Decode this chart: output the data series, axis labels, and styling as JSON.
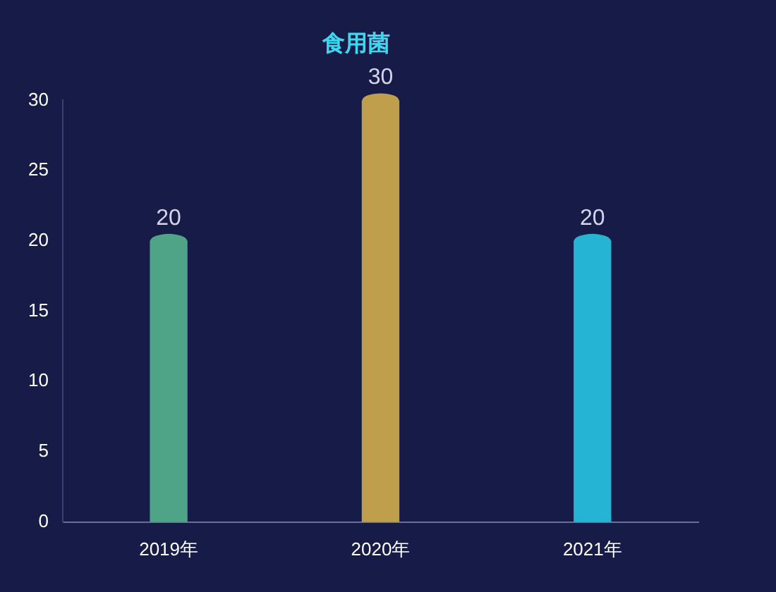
{
  "chart_data": {
    "type": "bar",
    "title": "食用菌",
    "categories": [
      "2019年",
      "2020年",
      "2021年"
    ],
    "values": [
      20,
      30,
      20
    ],
    "colors": [
      "#4fa487",
      "#bf9f4c",
      "#26b4d4"
    ],
    "ylim": [
      0,
      30
    ],
    "yticks": [
      0,
      5,
      10,
      15,
      20,
      25,
      30
    ],
    "grid": false,
    "legend": false,
    "data_labels": true
  }
}
